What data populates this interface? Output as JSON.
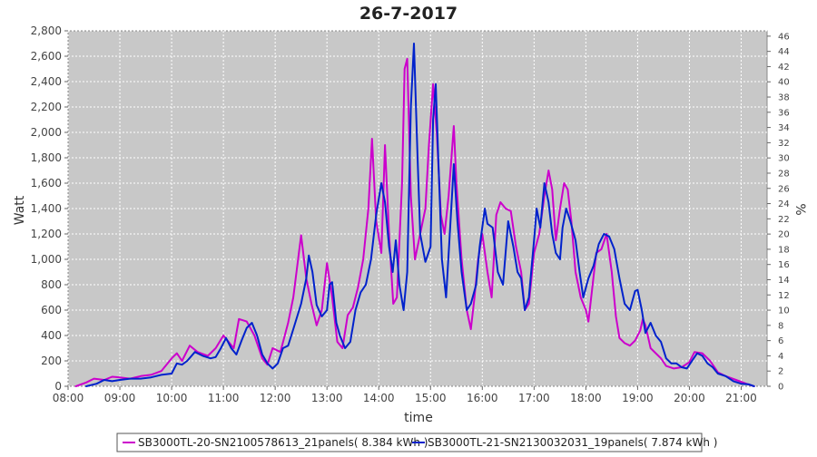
{
  "chart_data": {
    "type": "line",
    "title": "26-7-2017",
    "xlabel": "time",
    "ylabel": "Watt",
    "y2label": "%",
    "xlim": [
      8.0,
      21.5
    ],
    "ylim": [
      0,
      2800
    ],
    "y2lim": [
      0,
      46.7
    ],
    "x_ticks": [
      {
        "v": 8,
        "label": "08:00"
      },
      {
        "v": 9,
        "label": "09:00"
      },
      {
        "v": 10,
        "label": "10:00"
      },
      {
        "v": 11,
        "label": "11:00"
      },
      {
        "v": 12,
        "label": "12:00"
      },
      {
        "v": 13,
        "label": "13:00"
      },
      {
        "v": 14,
        "label": "14:00"
      },
      {
        "v": 15,
        "label": "15:00"
      },
      {
        "v": 16,
        "label": "16:00"
      },
      {
        "v": 17,
        "label": "17:00"
      },
      {
        "v": 18,
        "label": "18:00"
      },
      {
        "v": 19,
        "label": "19:00"
      },
      {
        "v": 20,
        "label": "20:00"
      },
      {
        "v": 21,
        "label": "21:00"
      }
    ],
    "y_ticks": [
      {
        "v": 0,
        "label": "0"
      },
      {
        "v": 200,
        "label": "200"
      },
      {
        "v": 400,
        "label": "400"
      },
      {
        "v": 600,
        "label": "600"
      },
      {
        "v": 800,
        "label": "800"
      },
      {
        "v": 1000,
        "label": "1,000"
      },
      {
        "v": 1200,
        "label": "1,200"
      },
      {
        "v": 1400,
        "label": "1,400"
      },
      {
        "v": 1600,
        "label": "1,600"
      },
      {
        "v": 1800,
        "label": "1,800"
      },
      {
        "v": 2000,
        "label": "2,000"
      },
      {
        "v": 2200,
        "label": "2,200"
      },
      {
        "v": 2400,
        "label": "2,400"
      },
      {
        "v": 2600,
        "label": "2,600"
      },
      {
        "v": 2800,
        "label": "2,800"
      }
    ],
    "y2_ticks": [
      {
        "v": 0,
        "label": "0"
      },
      {
        "v": 2,
        "label": "2"
      },
      {
        "v": 4,
        "label": "4"
      },
      {
        "v": 6,
        "label": "6"
      },
      {
        "v": 8,
        "label": "8"
      },
      {
        "v": 10,
        "label": "10"
      },
      {
        "v": 12,
        "label": "12"
      },
      {
        "v": 14,
        "label": "14"
      },
      {
        "v": 16,
        "label": "16"
      },
      {
        "v": 18,
        "label": "18"
      },
      {
        "v": 20,
        "label": "20"
      },
      {
        "v": 22,
        "label": "22"
      },
      {
        "v": 24,
        "label": "24"
      },
      {
        "v": 26,
        "label": "26"
      },
      {
        "v": 28,
        "label": "28"
      },
      {
        "v": 30,
        "label": "30"
      },
      {
        "v": 32,
        "label": "32"
      },
      {
        "v": 34,
        "label": "34"
      },
      {
        "v": 36,
        "label": "36"
      },
      {
        "v": 38,
        "label": "38"
      },
      {
        "v": 40,
        "label": "40"
      },
      {
        "v": 42,
        "label": "42"
      },
      {
        "v": 44,
        "label": "44"
      },
      {
        "v": 46,
        "label": "46"
      }
    ],
    "grid": true,
    "legend_position": "bottom",
    "series": [
      {
        "name": "SB3000TL-20-SN2100578613_21panels( 8.384 kWh )",
        "color": "#cc00cc",
        "points": [
          [
            8.15,
            0
          ],
          [
            8.35,
            30
          ],
          [
            8.5,
            60
          ],
          [
            8.7,
            50
          ],
          [
            8.85,
            75
          ],
          [
            9.0,
            70
          ],
          [
            9.2,
            60
          ],
          [
            9.4,
            80
          ],
          [
            9.6,
            90
          ],
          [
            9.8,
            120
          ],
          [
            10.0,
            220
          ],
          [
            10.1,
            260
          ],
          [
            10.2,
            200
          ],
          [
            10.35,
            320
          ],
          [
            10.5,
            270
          ],
          [
            10.7,
            240
          ],
          [
            10.85,
            300
          ],
          [
            11.0,
            400
          ],
          [
            11.1,
            350
          ],
          [
            11.2,
            300
          ],
          [
            11.3,
            530
          ],
          [
            11.45,
            510
          ],
          [
            11.6,
            400
          ],
          [
            11.75,
            220
          ],
          [
            11.85,
            170
          ],
          [
            11.95,
            300
          ],
          [
            12.1,
            270
          ],
          [
            12.25,
            500
          ],
          [
            12.35,
            700
          ],
          [
            12.5,
            1190
          ],
          [
            12.6,
            850
          ],
          [
            12.7,
            650
          ],
          [
            12.8,
            480
          ],
          [
            12.9,
            600
          ],
          [
            13.0,
            970
          ],
          [
            13.1,
            700
          ],
          [
            13.2,
            350
          ],
          [
            13.3,
            300
          ],
          [
            13.4,
            560
          ],
          [
            13.5,
            620
          ],
          [
            13.6,
            780
          ],
          [
            13.7,
            1000
          ],
          [
            13.8,
            1400
          ],
          [
            13.87,
            1950
          ],
          [
            13.95,
            1300
          ],
          [
            14.05,
            1050
          ],
          [
            14.12,
            1900
          ],
          [
            14.2,
            1200
          ],
          [
            14.28,
            650
          ],
          [
            14.35,
            700
          ],
          [
            14.45,
            1600
          ],
          [
            14.5,
            2500
          ],
          [
            14.55,
            2580
          ],
          [
            14.62,
            1500
          ],
          [
            14.7,
            1000
          ],
          [
            14.8,
            1200
          ],
          [
            14.9,
            1400
          ],
          [
            14.97,
            1900
          ],
          [
            15.05,
            2380
          ],
          [
            15.12,
            2000
          ],
          [
            15.2,
            1350
          ],
          [
            15.27,
            1200
          ],
          [
            15.35,
            1500
          ],
          [
            15.45,
            2050
          ],
          [
            15.5,
            1600
          ],
          [
            15.6,
            1000
          ],
          [
            15.7,
            600
          ],
          [
            15.78,
            450
          ],
          [
            15.85,
            700
          ],
          [
            15.92,
            1000
          ],
          [
            16.0,
            1200
          ],
          [
            16.1,
            900
          ],
          [
            16.18,
            700
          ],
          [
            16.27,
            1350
          ],
          [
            16.35,
            1450
          ],
          [
            16.45,
            1400
          ],
          [
            16.55,
            1380
          ],
          [
            16.65,
            1100
          ],
          [
            16.75,
            900
          ],
          [
            16.82,
            600
          ],
          [
            16.9,
            650
          ],
          [
            17.0,
            1050
          ],
          [
            17.1,
            1200
          ],
          [
            17.2,
            1500
          ],
          [
            17.28,
            1700
          ],
          [
            17.35,
            1550
          ],
          [
            17.42,
            1150
          ],
          [
            17.5,
            1400
          ],
          [
            17.58,
            1600
          ],
          [
            17.65,
            1550
          ],
          [
            17.72,
            1300
          ],
          [
            17.8,
            900
          ],
          [
            17.9,
            700
          ],
          [
            18.0,
            600
          ],
          [
            18.05,
            510
          ],
          [
            18.12,
            760
          ],
          [
            18.2,
            1050
          ],
          [
            18.3,
            1080
          ],
          [
            18.4,
            1200
          ],
          [
            18.5,
            900
          ],
          [
            18.58,
            550
          ],
          [
            18.65,
            380
          ],
          [
            18.75,
            340
          ],
          [
            18.85,
            320
          ],
          [
            18.95,
            360
          ],
          [
            19.05,
            440
          ],
          [
            19.1,
            530
          ],
          [
            19.15,
            480
          ],
          [
            19.25,
            300
          ],
          [
            19.35,
            260
          ],
          [
            19.45,
            220
          ],
          [
            19.55,
            160
          ],
          [
            19.7,
            140
          ],
          [
            19.85,
            150
          ],
          [
            20.0,
            190
          ],
          [
            20.1,
            270
          ],
          [
            20.25,
            260
          ],
          [
            20.4,
            200
          ],
          [
            20.55,
            110
          ],
          [
            20.7,
            80
          ],
          [
            20.9,
            50
          ],
          [
            21.1,
            20
          ],
          [
            21.25,
            0
          ]
        ]
      },
      {
        "name": "SB3000TL-21-SN2130032031_19panels( 7.874 kWh )",
        "color": "#0022cc",
        "points": [
          [
            8.35,
            0
          ],
          [
            8.55,
            20
          ],
          [
            8.7,
            50
          ],
          [
            8.85,
            40
          ],
          [
            9.0,
            50
          ],
          [
            9.2,
            60
          ],
          [
            9.4,
            60
          ],
          [
            9.6,
            70
          ],
          [
            9.8,
            90
          ],
          [
            10.0,
            100
          ],
          [
            10.1,
            180
          ],
          [
            10.2,
            170
          ],
          [
            10.3,
            200
          ],
          [
            10.45,
            270
          ],
          [
            10.6,
            240
          ],
          [
            10.75,
            220
          ],
          [
            10.85,
            230
          ],
          [
            10.95,
            300
          ],
          [
            11.05,
            380
          ],
          [
            11.15,
            300
          ],
          [
            11.25,
            250
          ],
          [
            11.35,
            360
          ],
          [
            11.45,
            460
          ],
          [
            11.55,
            500
          ],
          [
            11.65,
            400
          ],
          [
            11.75,
            250
          ],
          [
            11.85,
            180
          ],
          [
            11.95,
            140
          ],
          [
            12.05,
            180
          ],
          [
            12.15,
            300
          ],
          [
            12.25,
            320
          ],
          [
            12.35,
            450
          ],
          [
            12.5,
            650
          ],
          [
            12.6,
            850
          ],
          [
            12.65,
            1030
          ],
          [
            12.72,
            900
          ],
          [
            12.8,
            640
          ],
          [
            12.9,
            550
          ],
          [
            13.0,
            600
          ],
          [
            13.05,
            800
          ],
          [
            13.1,
            820
          ],
          [
            13.18,
            500
          ],
          [
            13.25,
            400
          ],
          [
            13.35,
            300
          ],
          [
            13.45,
            350
          ],
          [
            13.55,
            600
          ],
          [
            13.65,
            740
          ],
          [
            13.75,
            800
          ],
          [
            13.85,
            1000
          ],
          [
            13.95,
            1350
          ],
          [
            14.05,
            1600
          ],
          [
            14.12,
            1450
          ],
          [
            14.2,
            1100
          ],
          [
            14.27,
            900
          ],
          [
            14.33,
            1150
          ],
          [
            14.4,
            800
          ],
          [
            14.48,
            600
          ],
          [
            14.55,
            900
          ],
          [
            14.62,
            2200
          ],
          [
            14.68,
            2700
          ],
          [
            14.75,
            1800
          ],
          [
            14.8,
            1200
          ],
          [
            14.9,
            980
          ],
          [
            15.0,
            1100
          ],
          [
            15.05,
            2100
          ],
          [
            15.1,
            2380
          ],
          [
            15.15,
            1800
          ],
          [
            15.22,
            1000
          ],
          [
            15.3,
            700
          ],
          [
            15.38,
            1250
          ],
          [
            15.45,
            1750
          ],
          [
            15.52,
            1300
          ],
          [
            15.6,
            900
          ],
          [
            15.7,
            600
          ],
          [
            15.78,
            650
          ],
          [
            15.88,
            800
          ],
          [
            15.95,
            1100
          ],
          [
            16.05,
            1400
          ],
          [
            16.1,
            1280
          ],
          [
            16.2,
            1250
          ],
          [
            16.3,
            900
          ],
          [
            16.4,
            800
          ],
          [
            16.5,
            1300
          ],
          [
            16.6,
            1100
          ],
          [
            16.68,
            900
          ],
          [
            16.75,
            850
          ],
          [
            16.82,
            600
          ],
          [
            16.9,
            700
          ],
          [
            17.0,
            1150
          ],
          [
            17.05,
            1400
          ],
          [
            17.12,
            1250
          ],
          [
            17.2,
            1600
          ],
          [
            17.28,
            1450
          ],
          [
            17.35,
            1200
          ],
          [
            17.42,
            1050
          ],
          [
            17.5,
            1000
          ],
          [
            17.55,
            1250
          ],
          [
            17.62,
            1400
          ],
          [
            17.7,
            1300
          ],
          [
            17.8,
            1150
          ],
          [
            17.88,
            900
          ],
          [
            17.95,
            700
          ],
          [
            18.05,
            850
          ],
          [
            18.15,
            950
          ],
          [
            18.25,
            1120
          ],
          [
            18.35,
            1200
          ],
          [
            18.45,
            1180
          ],
          [
            18.55,
            1080
          ],
          [
            18.65,
            850
          ],
          [
            18.75,
            650
          ],
          [
            18.85,
            600
          ],
          [
            18.95,
            750
          ],
          [
            19.0,
            760
          ],
          [
            19.08,
            600
          ],
          [
            19.15,
            420
          ],
          [
            19.25,
            500
          ],
          [
            19.35,
            400
          ],
          [
            19.45,
            350
          ],
          [
            19.55,
            220
          ],
          [
            19.65,
            180
          ],
          [
            19.75,
            180
          ],
          [
            19.85,
            150
          ],
          [
            19.95,
            140
          ],
          [
            20.05,
            200
          ],
          [
            20.15,
            260
          ],
          [
            20.25,
            240
          ],
          [
            20.35,
            180
          ],
          [
            20.45,
            150
          ],
          [
            20.55,
            100
          ],
          [
            20.7,
            80
          ],
          [
            20.85,
            40
          ],
          [
            21.0,
            20
          ],
          [
            21.15,
            15
          ],
          [
            21.25,
            0
          ]
        ]
      }
    ]
  }
}
